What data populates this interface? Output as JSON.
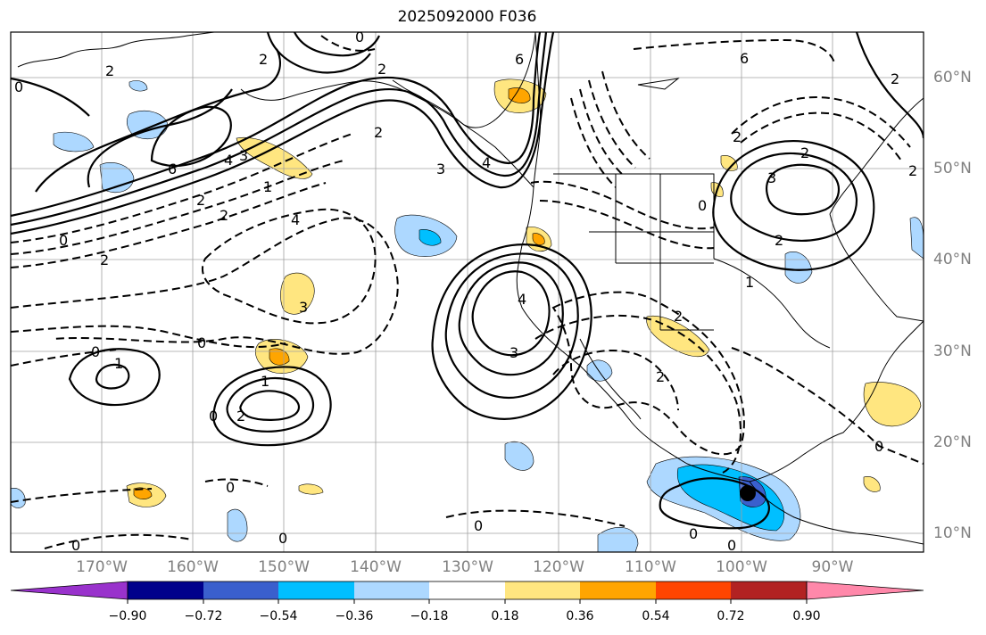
{
  "title": "2025092000 F036",
  "map": {
    "lat_labels": [
      "60°N",
      "50°N",
      "40°N",
      "30°N",
      "20°N",
      "10°N"
    ],
    "lon_labels": [
      "170°W",
      "160°W",
      "150°W",
      "140°W",
      "130°W",
      "120°W",
      "110°W",
      "100°W",
      "90°W"
    ],
    "contour_labels": [
      "0",
      "2",
      "6",
      "2",
      "2",
      "0",
      "6",
      "6",
      "4",
      "3",
      "2",
      "1",
      "2",
      "4",
      "0",
      "2",
      "3",
      "0",
      "3",
      "4",
      "0",
      "2",
      "4",
      "3",
      "3",
      "2",
      "2",
      "2",
      "2",
      "1",
      "0",
      "1",
      "1",
      "2",
      "0",
      "0",
      "0",
      "0",
      "0",
      "0",
      "0",
      "0",
      "2",
      "2",
      "2"
    ]
  },
  "colorbar": {
    "ticks": [
      "−0.90",
      "−0.72",
      "−0.54",
      "−0.36",
      "−0.18",
      "0.18",
      "0.36",
      "0.54",
      "0.72",
      "0.90"
    ],
    "colors": [
      "#9932cc",
      "#00008b",
      "#3a5fcd",
      "#00bfff",
      "#add8ff",
      "#ffffff",
      "#ffe680",
      "#ffa500",
      "#ff4500",
      "#b22222",
      "#ff88aa"
    ]
  }
}
